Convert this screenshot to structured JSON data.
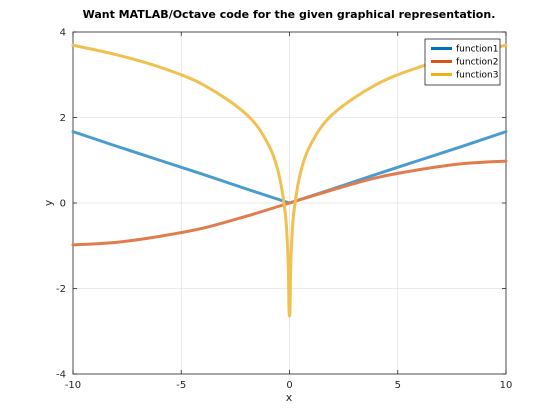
{
  "chart_data": {
    "type": "line",
    "title": "Want MATLAB/Octave code for the given graphical representation.",
    "xlabel": "x",
    "ylabel": "y",
    "xlim": [
      -10,
      10
    ],
    "ylim": [
      -4,
      4
    ],
    "xticks": [
      -10,
      -5,
      0,
      5,
      10
    ],
    "yticks": [
      -4,
      -2,
      0,
      2,
      4
    ],
    "xtick_labels": [
      "-10",
      "-5",
      "0",
      "5",
      "10"
    ],
    "ytick_labels": [
      "-4",
      "-2",
      "0",
      "2",
      "4"
    ],
    "grid": true,
    "legend_position": "top-right",
    "series": [
      {
        "name": "function1",
        "color": "#4a9bd0",
        "legend_color": "#0072bd",
        "x": [
          -10,
          -8,
          -6,
          -4,
          -2,
          0,
          2,
          4,
          6,
          8,
          10
        ],
        "y": [
          1.67,
          1.33,
          1.0,
          0.67,
          0.33,
          0.0,
          0.33,
          0.67,
          1.0,
          1.33,
          1.67
        ]
      },
      {
        "name": "function2",
        "color": "#e07d4e",
        "legend_color": "#d95319",
        "x": [
          -10,
          -8,
          -6,
          -4,
          -2,
          0,
          2,
          4,
          6,
          8,
          10
        ],
        "y": [
          -0.98,
          -0.92,
          -0.78,
          -0.59,
          -0.31,
          0.0,
          0.31,
          0.59,
          0.78,
          0.92,
          0.98
        ]
      },
      {
        "name": "function3",
        "color": "#f0c050",
        "legend_color": "#edb120",
        "x": [
          -10,
          -8,
          -6,
          -4,
          -2,
          -1,
          -0.5,
          -0.2,
          -0.1,
          -0.05,
          -0.02,
          0.02,
          0.05,
          0.1,
          0.2,
          0.5,
          1,
          2,
          4,
          6,
          8,
          10
        ],
        "y": [
          3.69,
          3.47,
          3.18,
          2.77,
          2.08,
          1.39,
          0.69,
          -0.22,
          -0.92,
          -1.61,
          -2.53,
          -2.53,
          -1.61,
          -0.92,
          -0.22,
          0.69,
          1.39,
          2.08,
          2.77,
          3.18,
          3.47,
          3.69
        ]
      }
    ]
  }
}
